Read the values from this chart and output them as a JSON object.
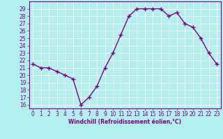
{
  "x": [
    0,
    1,
    2,
    3,
    4,
    5,
    6,
    7,
    8,
    9,
    10,
    11,
    12,
    13,
    14,
    15,
    16,
    17,
    18,
    19,
    20,
    21,
    22,
    23
  ],
  "y": [
    21.5,
    21.0,
    21.0,
    20.5,
    20.0,
    19.5,
    16.0,
    17.0,
    18.5,
    21.0,
    23.0,
    25.5,
    28.0,
    29.0,
    29.0,
    29.0,
    29.0,
    28.0,
    28.5,
    27.0,
    26.5,
    25.0,
    23.0,
    21.5
  ],
  "line_color": "#800080",
  "marker": "+",
  "markersize": 4,
  "linewidth": 1.0,
  "bg_color": "#b2f0f0",
  "grid_color": "#ffffff",
  "xlabel": "Windchill (Refroidissement éolien,°C)",
  "xlabel_color": "#800080",
  "tick_color": "#800080",
  "ylim": [
    15.5,
    30
  ],
  "xlim": [
    -0.5,
    23.5
  ],
  "yticks": [
    16,
    17,
    18,
    19,
    20,
    21,
    22,
    23,
    24,
    25,
    26,
    27,
    28,
    29
  ],
  "xticks": [
    0,
    1,
    2,
    3,
    4,
    5,
    6,
    7,
    8,
    9,
    10,
    11,
    12,
    13,
    14,
    15,
    16,
    17,
    18,
    19,
    20,
    21,
    22,
    23
  ],
  "tick_fontsize": 5.5,
  "xlabel_fontsize": 5.5
}
